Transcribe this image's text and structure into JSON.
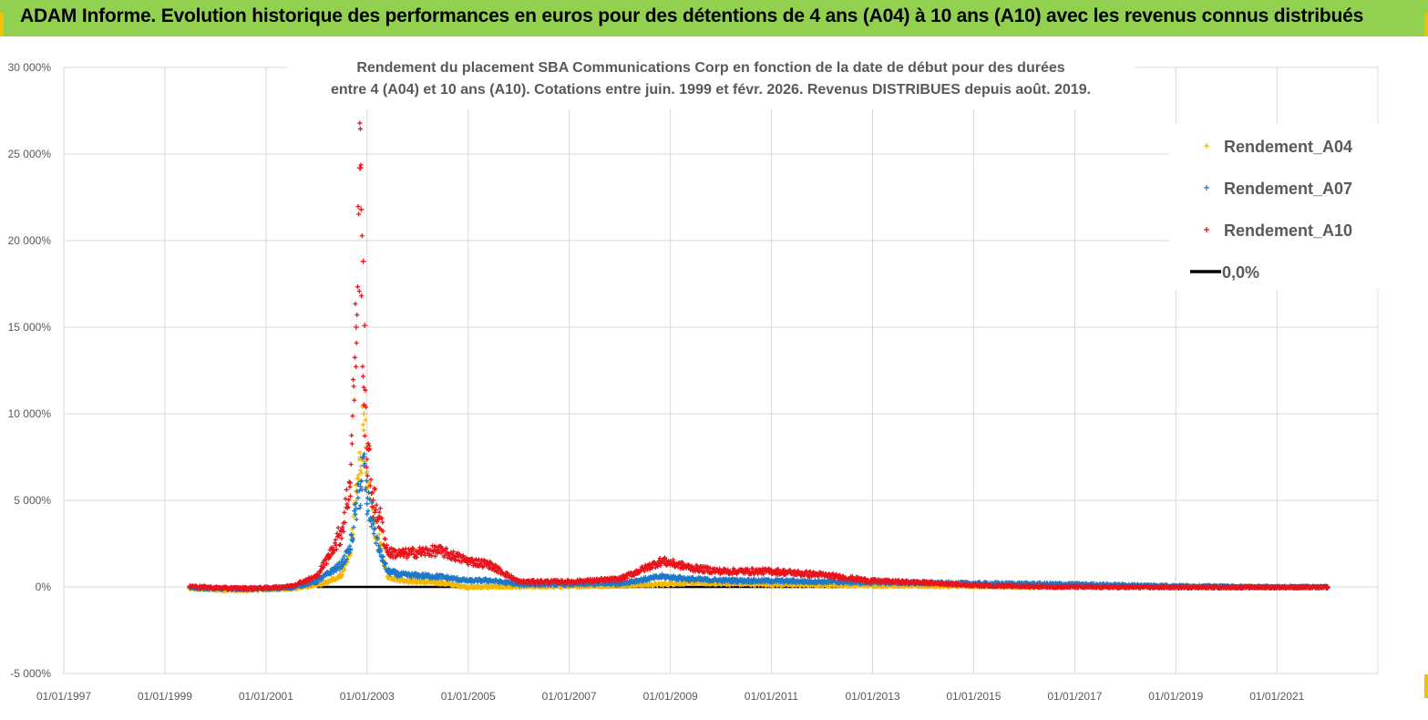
{
  "banner": {
    "title": "ADAM Informe. Evolution historique des performances en euros pour des détentions de 4 ans (A04) à 10 ans (A10) avec les revenus connus distribués"
  },
  "colors": {
    "banner_bg": "#92d050",
    "A04": "#f5b800",
    "A07": "#1f78c8",
    "A10": "#e8141c",
    "zero": "#000000",
    "grid": "#d9d9d9"
  },
  "chart_data": {
    "type": "scatter",
    "title_lines": [
      "Rendement du placement SBA Communications Corp en fonction de la date de début pour des durées",
      "entre 4 (A04) et 10 ans (A10).  Cotations entre juin. 1999 et févr. 2026. Revenus DISTRIBUES depuis août. 2019."
    ],
    "xlabel": "",
    "ylabel": "",
    "x_ticks": [
      "01/01/1997",
      "01/01/1999",
      "01/01/2001",
      "01/01/2003",
      "01/01/2005",
      "01/01/2007",
      "01/01/2009",
      "01/01/2011",
      "01/01/2013",
      "01/01/2015",
      "01/01/2017",
      "01/01/2019",
      "01/01/2021"
    ],
    "y_ticks": [
      "-5 000%",
      "0%",
      "5 000%",
      "10 000%",
      "15 000%",
      "20 000%",
      "25 000%",
      "30 000%"
    ],
    "xlim": [
      "1997-01-01",
      "2022-12-31"
    ],
    "ylim": [
      -5000,
      30000
    ],
    "grid": true,
    "legend_position": "top-right",
    "series": [
      {
        "name": "Rendement_A04",
        "marker": "plus",
        "points": [
          [
            "1999-07-01",
            -100
          ],
          [
            "2000-01-01",
            -150
          ],
          [
            "2000-07-01",
            -180
          ],
          [
            "2001-01-01",
            -150
          ],
          [
            "2001-07-01",
            -100
          ],
          [
            "2002-01-01",
            100
          ],
          [
            "2002-04-01",
            300
          ],
          [
            "2002-07-01",
            700
          ],
          [
            "2002-09-01",
            2000
          ],
          [
            "2002-10-15",
            5000
          ],
          [
            "2002-11-15",
            7500
          ],
          [
            "2002-12-10",
            10000
          ],
          [
            "2003-01-01",
            5500
          ],
          [
            "2003-02-15",
            4000
          ],
          [
            "2003-04-01",
            2500
          ],
          [
            "2003-06-01",
            600
          ],
          [
            "2003-09-01",
            400
          ],
          [
            "2004-01-01",
            300
          ],
          [
            "2004-06-01",
            250
          ],
          [
            "2005-01-01",
            -20
          ],
          [
            "2005-06-01",
            10
          ],
          [
            "2006-01-01",
            0
          ],
          [
            "2007-01-01",
            30
          ],
          [
            "2008-01-01",
            80
          ],
          [
            "2008-11-01",
            150
          ],
          [
            "2009-06-01",
            250
          ],
          [
            "2010-01-01",
            200
          ],
          [
            "2011-01-01",
            150
          ],
          [
            "2012-01-01",
            100
          ],
          [
            "2013-01-01",
            80
          ],
          [
            "2014-01-01",
            60
          ],
          [
            "2015-01-01",
            40
          ],
          [
            "2016-01-01",
            20
          ],
          [
            "2017-01-01",
            50
          ],
          [
            "2018-01-01",
            60
          ],
          [
            "2019-01-01",
            30
          ],
          [
            "2020-01-01",
            10
          ],
          [
            "2021-01-01",
            -10
          ],
          [
            "2022-01-01",
            -20
          ]
        ]
      },
      {
        "name": "Rendement_A07",
        "marker": "plus",
        "points": [
          [
            "1999-07-01",
            -50
          ],
          [
            "2000-01-01",
            -100
          ],
          [
            "2000-07-01",
            -120
          ],
          [
            "2001-01-01",
            -100
          ],
          [
            "2001-07-01",
            -50
          ],
          [
            "2002-01-01",
            300
          ],
          [
            "2002-04-01",
            800
          ],
          [
            "2002-07-01",
            1300
          ],
          [
            "2002-09-01",
            2200
          ],
          [
            "2002-10-15",
            4500
          ],
          [
            "2002-11-15",
            5800
          ],
          [
            "2002-12-10",
            7000
          ],
          [
            "2003-01-01",
            4800
          ],
          [
            "2003-02-15",
            3800
          ],
          [
            "2003-04-01",
            2000
          ],
          [
            "2003-06-01",
            900
          ],
          [
            "2003-09-01",
            700
          ],
          [
            "2004-01-01",
            650
          ],
          [
            "2004-06-01",
            600
          ],
          [
            "2005-01-01",
            350
          ],
          [
            "2005-06-01",
            380
          ],
          [
            "2006-01-01",
            150
          ],
          [
            "2007-01-01",
            150
          ],
          [
            "2008-01-01",
            200
          ],
          [
            "2008-11-01",
            600
          ],
          [
            "2009-06-01",
            450
          ],
          [
            "2010-01-01",
            380
          ],
          [
            "2011-01-01",
            350
          ],
          [
            "2012-01-01",
            300
          ],
          [
            "2013-01-01",
            250
          ],
          [
            "2014-01-01",
            230
          ],
          [
            "2015-01-01",
            200
          ],
          [
            "2016-01-01",
            180
          ],
          [
            "2017-01-01",
            150
          ],
          [
            "2018-01-01",
            100
          ],
          [
            "2019-01-01",
            60
          ],
          [
            "2020-01-01",
            20
          ],
          [
            "2021-01-01",
            0
          ],
          [
            "2022-01-01",
            0
          ]
        ]
      },
      {
        "name": "Rendement_A10",
        "marker": "plus",
        "points": [
          [
            "1999-07-01",
            50
          ],
          [
            "2000-01-01",
            -50
          ],
          [
            "2000-07-01",
            -80
          ],
          [
            "2001-01-01",
            -60
          ],
          [
            "2001-07-01",
            50
          ],
          [
            "2002-01-01",
            600
          ],
          [
            "2002-04-01",
            1800
          ],
          [
            "2002-07-01",
            3200
          ],
          [
            "2002-09-01",
            6000
          ],
          [
            "2002-10-15",
            15000
          ],
          [
            "2002-11-15",
            24200
          ],
          [
            "2002-12-10",
            10500
          ],
          [
            "2003-01-01",
            8000
          ],
          [
            "2003-02-15",
            5000
          ],
          [
            "2003-04-01",
            4000
          ],
          [
            "2003-06-01",
            2000
          ],
          [
            "2003-09-01",
            1900
          ],
          [
            "2004-01-01",
            2000
          ],
          [
            "2004-06-01",
            2100
          ],
          [
            "2005-01-01",
            1500
          ],
          [
            "2005-06-01",
            1300
          ],
          [
            "2006-01-01",
            300
          ],
          [
            "2007-01-01",
            300
          ],
          [
            "2008-01-01",
            450
          ],
          [
            "2008-11-01",
            1500
          ],
          [
            "2009-06-01",
            1100
          ],
          [
            "2010-01-01",
            900
          ],
          [
            "2011-01-01",
            900
          ],
          [
            "2012-01-01",
            700
          ],
          [
            "2013-01-01",
            350
          ],
          [
            "2014-01-01",
            250
          ],
          [
            "2015-01-01",
            100
          ],
          [
            "2016-01-01",
            20
          ],
          [
            "2017-01-01",
            0
          ],
          [
            "2018-01-01",
            -20
          ],
          [
            "2019-01-01",
            -20
          ],
          [
            "2020-01-01",
            -20
          ],
          [
            "2021-01-01",
            -20
          ],
          [
            "2022-01-01",
            -20
          ]
        ]
      },
      {
        "name": "0,0%",
        "marker": "line",
        "points": [
          [
            "2002-01-01",
            0
          ],
          [
            "2012-06-01",
            0
          ]
        ]
      }
    ],
    "outliers_A10": [
      [
        "2002-11-10",
        24200
      ],
      [
        "2002-11-20",
        21800
      ],
      [
        "2002-12-05",
        18800
      ],
      [
        "2002-12-15",
        15100
      ]
    ]
  }
}
